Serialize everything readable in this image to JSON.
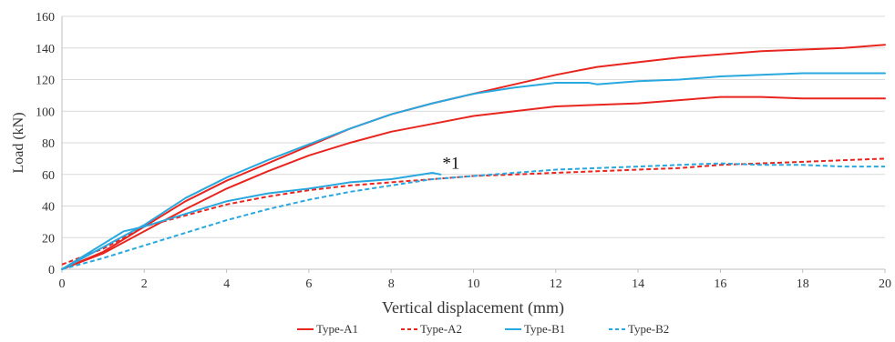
{
  "chart_data": {
    "type": "line",
    "xlabel": "Vertical displacement (mm)",
    "ylabel": "Load (kN)",
    "xlim": [
      0,
      20
    ],
    "ylim": [
      0,
      160
    ],
    "xticks": [
      0,
      2,
      4,
      6,
      8,
      10,
      12,
      14,
      16,
      18,
      20
    ],
    "yticks": [
      0,
      20,
      40,
      60,
      80,
      100,
      120,
      140,
      160
    ],
    "grid": "horizontal",
    "legend_position": "bottom",
    "annotation": {
      "text": "*1",
      "x": 9.2,
      "y": 62
    },
    "series": [
      {
        "name": "Type-A1",
        "color": "#e8251f",
        "dash": "solid",
        "x": [
          0,
          1,
          2,
          3,
          4,
          5,
          6,
          7,
          8,
          9,
          10,
          11,
          12,
          13,
          14,
          15,
          16,
          17,
          18,
          19,
          20
        ],
        "y": [
          0,
          11,
          27,
          43,
          56,
          67,
          78,
          89,
          98,
          105,
          111,
          117,
          123,
          128,
          131,
          134,
          136,
          138,
          139,
          140,
          142
        ]
      },
      {
        "name": "Type-A1",
        "color": "#e8251f",
        "dash": "solid",
        "x": [
          0,
          1,
          2,
          3,
          4,
          5,
          6,
          7,
          8,
          9,
          10,
          11,
          12,
          13,
          14,
          15,
          16,
          17,
          18,
          19,
          20
        ],
        "y": [
          0,
          10,
          24,
          38,
          51,
          62,
          72,
          80,
          87,
          92,
          97,
          100,
          103,
          104,
          105,
          107,
          109,
          109,
          108,
          108,
          108
        ]
      },
      {
        "name": "Type-A2",
        "color": "#e8251f",
        "dash": "dashed",
        "x": [
          0,
          1,
          2,
          3,
          4,
          5,
          6,
          7,
          8,
          9,
          10,
          11,
          12,
          13,
          14,
          15,
          16,
          17,
          18,
          19,
          20
        ],
        "y": [
          3,
          13,
          27,
          34,
          41,
          46,
          50,
          53,
          55,
          57,
          59,
          60,
          61,
          62,
          63,
          64,
          66,
          67,
          68,
          69,
          70
        ]
      },
      {
        "name": "Type-B1",
        "color": "#29a8df",
        "dash": "solid",
        "x": [
          0,
          1,
          2,
          3,
          4,
          5,
          6,
          7,
          8,
          9,
          10,
          11,
          12,
          12.8,
          13,
          14,
          15,
          16,
          17,
          18,
          19,
          20
        ],
        "y": [
          0,
          14,
          28,
          45,
          58,
          69,
          79,
          89,
          98,
          105,
          111,
          115,
          118,
          118,
          117,
          119,
          120,
          122,
          123,
          124,
          124,
          124
        ]
      },
      {
        "name": "Type-B1",
        "color": "#29a8df",
        "dash": "solid",
        "x": [
          0,
          0.5,
          1,
          1.5,
          2,
          2.5,
          3,
          3.5,
          4,
          5,
          6,
          7,
          7.5,
          8,
          8.5,
          9,
          9.2
        ],
        "y": [
          0,
          8,
          16,
          24,
          27,
          31,
          35,
          39,
          43,
          48,
          51,
          55,
          56,
          57,
          59,
          61,
          60
        ]
      },
      {
        "name": "Type-B2",
        "color": "#29a8df",
        "dash": "dashed",
        "x": [
          0,
          1,
          2,
          3,
          4,
          5,
          6,
          7,
          8,
          9,
          10,
          11,
          12,
          13,
          14,
          15,
          16,
          17,
          18,
          19,
          20
        ],
        "y": [
          0,
          7,
          15,
          23,
          31,
          38,
          44,
          49,
          53,
          57,
          59,
          61,
          63,
          64,
          65,
          66,
          67,
          66,
          66,
          65,
          65
        ]
      }
    ],
    "legend": [
      {
        "label": "Type-A1",
        "color": "#e8251f",
        "dash": "solid"
      },
      {
        "label": "Type-A2",
        "color": "#e8251f",
        "dash": "dashed"
      },
      {
        "label": "Type-B1",
        "color": "#29a8df",
        "dash": "solid"
      },
      {
        "label": "Type-B2",
        "color": "#29a8df",
        "dash": "dashed"
      }
    ]
  }
}
